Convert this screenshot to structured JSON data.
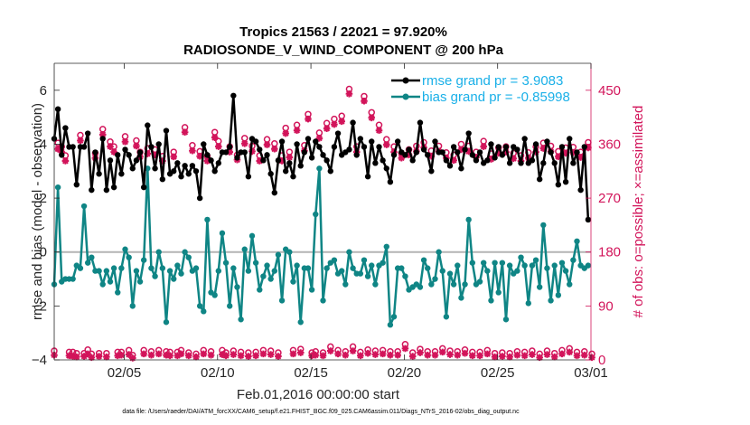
{
  "chart_data": {
    "type": "line",
    "title": "Tropics 21563 / 22021 = 97.920%",
    "subtitle": "RADIOSONDE_V_WIND_COMPONENT @ 200 hPa",
    "xlabel": "Feb.01,2016 00:00:00 start",
    "ylabel_left": "rmse and bias (model - observation)",
    "ylabel_right": "# of obs: o=possible; ×=assimilated",
    "footer": "data file: /Users/raeder/DAI/ATM_forcXX/CAM6_setup/f.e21.FHIST_BGC.f09_025.CAM6assim.011/Diags_NTrS_2016-02/obs_diag_output.nc",
    "x_range_days": [
      0.25,
      29.0
    ],
    "ylim_left": [
      -4,
      7
    ],
    "ylim_right": [
      0,
      495
    ],
    "grid": false,
    "legend_position": "top-right",
    "x_ticks": [
      {
        "day": 4.0,
        "label": "02/05"
      },
      {
        "day": 9.0,
        "label": "02/10"
      },
      {
        "day": 14.0,
        "label": "02/15"
      },
      {
        "day": 19.0,
        "label": "02/20"
      },
      {
        "day": 24.0,
        "label": "02/25"
      },
      {
        "day": 29.0,
        "label": "03/01"
      }
    ],
    "y_ticks_left": [
      -4,
      -2,
      0,
      2,
      4,
      6
    ],
    "y_ticks_right": [
      0,
      90,
      180,
      270,
      360,
      450
    ],
    "colors": {
      "rmse": "#000000",
      "bias": "#0f8585",
      "obs": "#d2145a",
      "right_axis": "#d2145a",
      "legend_text": "#1ab0e8",
      "zero_line": "#b4b4b4"
    },
    "series": [
      {
        "name": "rmse grand pr = 3.9083",
        "axis": "left",
        "values": [
          4.2,
          5.3,
          3.6,
          4.6,
          3.9,
          3.9,
          2.5,
          3.9,
          3.9,
          4.4,
          2.3,
          3.7,
          2.9,
          4.2,
          2.3,
          3.4,
          2.4,
          3.6,
          2.9,
          3.8,
          3.6,
          3.1,
          3.4,
          3.7,
          2.4,
          4.7,
          3.9,
          3.1,
          4.0,
          2.7,
          4.5,
          2.9,
          3.0,
          3.3,
          2.8,
          3.2,
          2.9,
          3.2,
          3.0,
          2.0,
          4.0,
          3.6,
          3.4,
          3.0,
          3.3,
          3.7,
          3.7,
          3.9,
          5.8,
          3.5,
          3.7,
          3.7,
          2.8,
          4.2,
          4.1,
          3.8,
          3.4,
          3.6,
          2.9,
          2.2,
          3.4,
          4.1,
          3.0,
          3.3,
          2.8,
          4.0,
          3.2,
          3.7,
          4.2,
          3.5,
          4.1,
          3.9,
          3.6,
          3.4,
          3.0,
          3.9,
          4.4,
          3.6,
          3.7,
          3.8,
          4.8,
          3.6,
          4.2,
          3.9,
          2.8,
          4.1,
          3.3,
          3.9,
          3.4,
          3.1,
          2.6,
          3.6,
          4.1,
          3.7,
          3.6,
          3.8,
          3.4,
          3.7,
          4.8,
          3.8,
          3.6,
          3.0,
          4.1,
          3.7,
          3.7,
          3.4,
          3.2,
          3.9,
          3.7,
          3.1,
          3.8,
          4.4,
          3.6,
          3.4,
          3.7,
          3.3,
          3.4,
          4.0,
          3.5,
          3.9,
          3.6,
          3.9,
          3.3,
          3.9,
          3.8,
          3.3,
          4.2,
          3.3,
          3.4,
          4.0,
          2.7,
          3.3,
          4.1,
          3.7,
          3.3,
          2.5,
          3.9,
          2.6,
          4.2,
          3.3,
          3.7,
          2.3,
          3.9,
          1.2
        ]
      },
      {
        "name": "bias grand pr = -0.85998",
        "axis": "left",
        "values": [
          -1.2,
          2.4,
          -1.1,
          -1.0,
          -1.0,
          -1.0,
          -0.5,
          -0.6,
          1.7,
          -0.4,
          -0.2,
          -0.7,
          -0.7,
          -1.2,
          -0.7,
          -1.1,
          -0.6,
          -1.5,
          -0.6,
          0.1,
          -0.2,
          -2.0,
          -0.7,
          -1.1,
          -0.3,
          3.1,
          -0.6,
          -0.9,
          0.0,
          -0.6,
          -2.6,
          -0.7,
          -1.0,
          -0.5,
          -0.8,
          0.0,
          -0.2,
          -0.7,
          -0.6,
          -2.0,
          -2.2,
          1.2,
          -1.5,
          -1.6,
          -0.7,
          0.7,
          -0.4,
          -2.0,
          -0.6,
          -1.3,
          -2.5,
          0.1,
          -0.7,
          0.6,
          -0.4,
          -1.4,
          -0.9,
          -0.5,
          -1.0,
          -0.7,
          -0.1,
          -1.8,
          0.1,
          0.0,
          -1.1,
          -0.5,
          -2.6,
          -0.6,
          -0.6,
          -1.4,
          1.4,
          3.1,
          -1.8,
          -0.6,
          -0.4,
          -0.3,
          -0.8,
          -0.7,
          -1.2,
          0.0,
          -0.6,
          -0.8,
          -0.8,
          -0.3,
          -0.9,
          -0.5,
          -1.2,
          -0.5,
          -0.4,
          0.2,
          -2.7,
          -2.4,
          -0.6,
          -0.6,
          -0.9,
          -1.4,
          -1.3,
          -1.2,
          -1.3,
          -0.3,
          -0.6,
          -1.2,
          -1.0,
          0.0,
          -0.7,
          -2.4,
          -0.8,
          -1.2,
          -0.5,
          -1.7,
          -1.2,
          1.2,
          -0.4,
          -1.2,
          -1.1,
          -0.4,
          -0.7,
          -1.8,
          -0.4,
          -1.5,
          -0.4,
          -2.5,
          -0.5,
          -0.8,
          -0.7,
          -0.2,
          -0.5,
          -1.9,
          -0.5,
          -0.3,
          -1.3,
          1.0,
          -0.6,
          -1.8,
          -0.5,
          -1.6,
          -0.4,
          -0.7,
          -1.2,
          -0.3,
          0.4,
          -0.5,
          -0.6,
          -0.5
        ]
      },
      {
        "name": "possible obs (o)",
        "axis": "right",
        "values": [
          15,
          362,
          356,
          341,
          13,
          13,
          11,
          375,
          11,
          17,
          10,
          345,
          11,
          385,
          11,
          364,
          356,
          13,
          13,
          373,
          16,
          8,
          366,
          347,
          16,
          353,
          14,
          351,
          16,
          340,
          14,
          13,
          347,
          13,
          16,
          388,
          12,
          358,
          10,
          348,
          16,
          340,
          14,
          380,
          365,
          16,
          12,
          356,
          15,
          342,
          13,
          370,
          12,
          357,
          13,
          341,
          16,
          368,
          15,
          361,
          12,
          341,
          387,
          347,
          16,
          392,
          18,
          358,
          410,
          12,
          14,
          379,
          12,
          395,
          22,
          402,
          16,
          407,
          14,
          452,
          22,
          356,
          13,
          440,
          17,
          413,
          15,
          392,
          16,
          368,
          14,
          356,
          14,
          345,
          26,
          351,
          12,
          357,
          18,
          363,
          14,
          349,
          14,
          357,
          19,
          346,
          15,
          342,
          14,
          360,
          17,
          357,
          13,
          347,
          13,
          365,
          16,
          344,
          11,
          354,
          12,
          356,
          11,
          345,
          14,
          341,
          13,
          346,
          15,
          356,
          10,
          362,
          15,
          357,
          11,
          348,
          16,
          354,
          19,
          355,
          13,
          347,
          14,
          363,
          10
        ]
      },
      {
        "name": "assimilated obs (×)",
        "axis": "right",
        "values": [
          8,
          352,
          347,
          332,
          7,
          6,
          5,
          366,
          6,
          10,
          4,
          337,
          6,
          376,
          5,
          356,
          347,
          7,
          8,
          364,
          9,
          3,
          357,
          339,
          10,
          344,
          8,
          342,
          10,
          332,
          8,
          7,
          339,
          7,
          10,
          380,
          7,
          349,
          5,
          340,
          10,
          332,
          8,
          371,
          356,
          9,
          7,
          347,
          9,
          334,
          7,
          361,
          6,
          348,
          7,
          332,
          10,
          359,
          9,
          352,
          6,
          332,
          378,
          338,
          10,
          383,
          12,
          349,
          402,
          7,
          8,
          370,
          7,
          386,
          15,
          393,
          10,
          398,
          8,
          444,
          15,
          347,
          7,
          432,
          11,
          404,
          9,
          383,
          10,
          359,
          8,
          347,
          8,
          337,
          19,
          342,
          6,
          348,
          12,
          354,
          8,
          340,
          8,
          348,
          13,
          337,
          9,
          333,
          8,
          351,
          11,
          348,
          7,
          338,
          7,
          356,
          10,
          335,
          5,
          345,
          6,
          347,
          5,
          336,
          8,
          332,
          7,
          337,
          9,
          347,
          4,
          353,
          9,
          348,
          5,
          339,
          10,
          345,
          13,
          346,
          7,
          338,
          8,
          354,
          4
        ]
      }
    ]
  }
}
